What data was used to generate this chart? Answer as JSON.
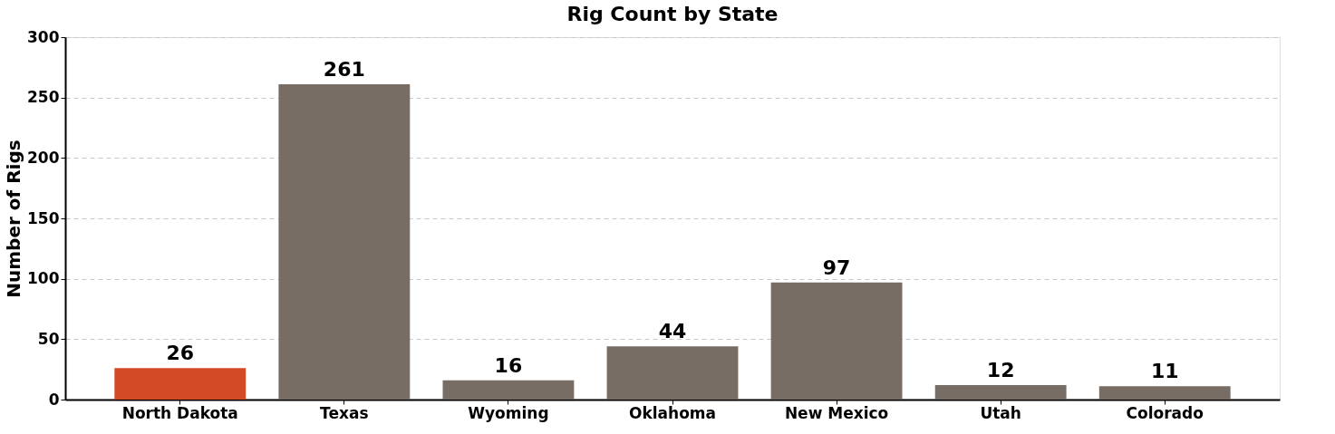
{
  "chart_data": {
    "type": "bar",
    "title": "Rig Count by State",
    "ylabel": "Number of Rigs",
    "categories": [
      "North Dakota",
      "Texas",
      "Wyoming",
      "Oklahoma",
      "New Mexico",
      "Utah",
      "Colorado"
    ],
    "values": [
      26,
      261,
      16,
      44,
      97,
      12,
      11
    ],
    "colors": [
      "#d34a26",
      "#786d64",
      "#786d64",
      "#786d64",
      "#786d64",
      "#786d64",
      "#786d64"
    ],
    "ylim": [
      0,
      300
    ],
    "yticks": [
      0,
      50,
      100,
      150,
      200,
      250,
      300
    ],
    "grid": "y",
    "data_labels": true
  }
}
